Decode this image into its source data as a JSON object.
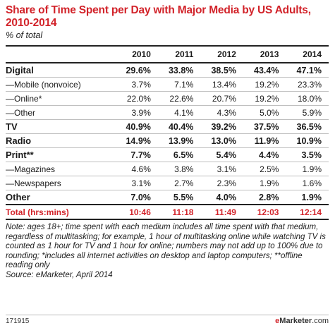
{
  "title": "Share of Time Spent per Day with Major Media by US Adults, 2010-2014",
  "subtitle": "% of total",
  "chart_data": {
    "type": "table",
    "columns": [
      "2010",
      "2011",
      "2012",
      "2013",
      "2014"
    ],
    "rows": [
      {
        "label": "Digital",
        "values": [
          "29.6%",
          "33.8%",
          "38.5%",
          "43.4%",
          "47.1%"
        ],
        "style": "major"
      },
      {
        "label": "—Mobile (nonvoice)",
        "values": [
          "3.7%",
          "7.1%",
          "13.4%",
          "19.2%",
          "23.3%"
        ],
        "style": "sub"
      },
      {
        "label": "—Online*",
        "values": [
          "22.0%",
          "22.6%",
          "20.7%",
          "19.2%",
          "18.0%"
        ],
        "style": "sub"
      },
      {
        "label": "—Other",
        "values": [
          "3.9%",
          "4.1%",
          "4.3%",
          "5.0%",
          "5.9%"
        ],
        "style": "sub"
      },
      {
        "label": "TV",
        "values": [
          "40.9%",
          "40.4%",
          "39.2%",
          "37.5%",
          "36.5%"
        ],
        "style": "major"
      },
      {
        "label": "Radio",
        "values": [
          "14.9%",
          "13.9%",
          "13.0%",
          "11.9%",
          "10.9%"
        ],
        "style": "major"
      },
      {
        "label": "Print**",
        "values": [
          "7.7%",
          "6.5%",
          "5.4%",
          "4.4%",
          "3.5%"
        ],
        "style": "major"
      },
      {
        "label": "—Magazines",
        "values": [
          "4.6%",
          "3.8%",
          "3.1%",
          "2.5%",
          "1.9%"
        ],
        "style": "sub"
      },
      {
        "label": "—Newspapers",
        "values": [
          "3.1%",
          "2.7%",
          "2.3%",
          "1.9%",
          "1.6%"
        ],
        "style": "sub"
      },
      {
        "label": "Other",
        "values": [
          "7.0%",
          "5.5%",
          "4.0%",
          "2.8%",
          "1.9%"
        ],
        "style": "major"
      },
      {
        "label": "Total (hrs:mins)",
        "values": [
          "10:46",
          "11:18",
          "11:49",
          "12:03",
          "12:14"
        ],
        "style": "total"
      }
    ]
  },
  "note": "Note: ages 18+; time spent with each medium includes all time spent with that medium, regardless of multitasking; for example, 1 hour of multitasking online while watching TV is counted as 1 hour for TV and 1 hour for online; numbers may not add up to 100% due to rounding; *includes all internet activities on desktop and laptop computers; **offline reading only",
  "source": "Source: eMarketer, April 2014",
  "footer": {
    "id": "171915",
    "logo_e": "e",
    "logo_name": "Marketer",
    "logo_tld": ".com"
  },
  "colors": {
    "accent": "#d2232a",
    "text": "#1a1a1a",
    "rule": "#222222"
  }
}
